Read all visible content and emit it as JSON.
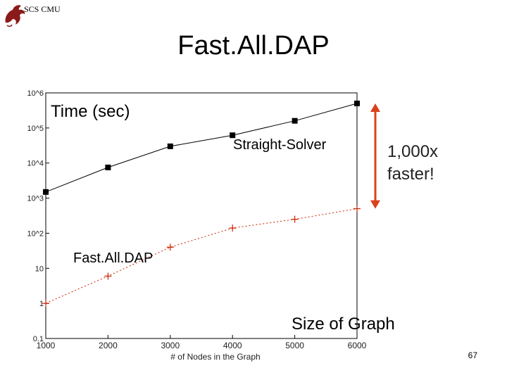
{
  "header": {
    "org": "SCS CMU",
    "logo": "dragon-logo-icon"
  },
  "slide": {
    "title": "Fast.All.DAP",
    "page_number": "67"
  },
  "chart_data": {
    "type": "line",
    "ylabel": "Time (sec)",
    "xlabel_axis": "# of Nodes in the Graph",
    "xlabel_overlay": "Size of Graph",
    "x": [
      1000,
      2000,
      3000,
      4000,
      5000,
      6000
    ],
    "xlim": [
      1000,
      6000
    ],
    "ylim": [
      0.1,
      1000000
    ],
    "yscale": "log",
    "y_ticks": [
      0.1,
      1,
      10,
      100,
      1000,
      10000,
      100000,
      1000000
    ],
    "y_tick_labels": [
      "0.1",
      "1",
      "10",
      "10^2",
      "10^3",
      "10^4",
      "10^5",
      "10^6"
    ],
    "x_tick_labels": [
      "1000",
      "2000",
      "3000",
      "4000",
      "5000",
      "6000"
    ],
    "series": [
      {
        "name": "Straight-Solver",
        "marker": "square",
        "color": "#000000",
        "values": [
          1500,
          7500,
          30000,
          62000,
          160000,
          500000
        ]
      },
      {
        "name": "Fast.All.DAP",
        "marker": "plus",
        "color": "#cc2200",
        "values": [
          1,
          6,
          40,
          140,
          250,
          500
        ]
      }
    ],
    "annotation": {
      "text_line1": "1,000x",
      "text_line2": "faster!",
      "arrow_color": "#d9421b"
    },
    "grid": false
  }
}
